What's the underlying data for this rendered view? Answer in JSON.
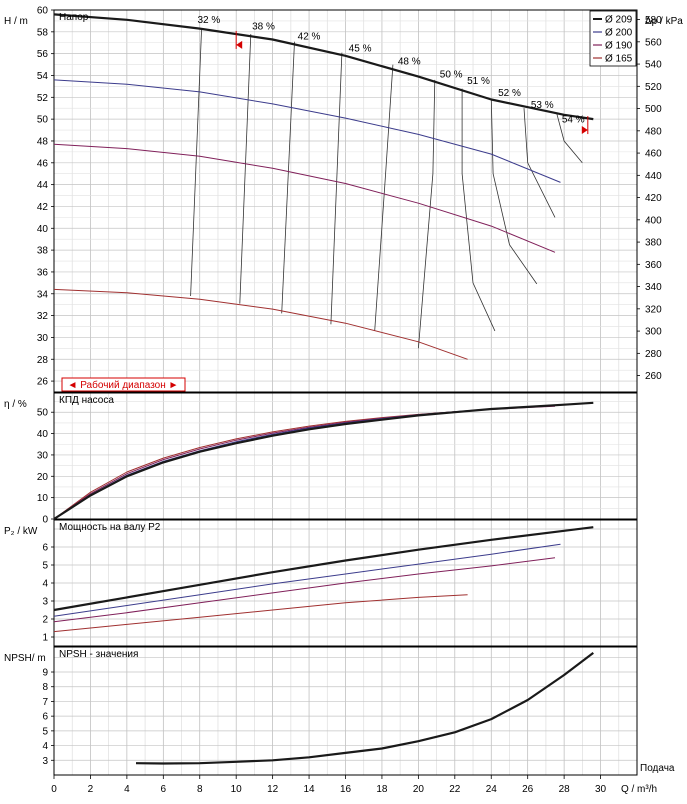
{
  "chart_data": {
    "type": "line",
    "x_axis": {
      "label": "Q / m³/h",
      "ticks": [
        0,
        2,
        4,
        6,
        8,
        10,
        12,
        14,
        16,
        18,
        20,
        22,
        24,
        26,
        28,
        30
      ],
      "xlim": [
        0,
        32
      ],
      "caption": "Подача"
    },
    "legend": [
      {
        "name": "Ø 209",
        "color": "#1a1a1a"
      },
      {
        "name": "Ø 200",
        "color": "#3c3c8c"
      },
      {
        "name": "Ø 190",
        "color": "#80205a"
      },
      {
        "name": "Ø 165",
        "color": "#a03030"
      }
    ],
    "legend_placement": "top-right",
    "grid": true,
    "head": {
      "title": "Напор",
      "ylabel": "H / m",
      "ylim": [
        25,
        60
      ],
      "yticks": [
        26,
        28,
        30,
        32,
        34,
        36,
        38,
        40,
        42,
        44,
        46,
        48,
        50,
        52,
        54,
        56,
        58,
        60
      ],
      "right_label": "Δp / kPa",
      "right_ticks": [
        260,
        280,
        300,
        320,
        340,
        360,
        380,
        400,
        420,
        440,
        460,
        480,
        500,
        520,
        540,
        560,
        580
      ],
      "range_label": "◄ Рабочий диапазон ►",
      "series": [
        {
          "name": "Ø 209",
          "x": [
            0,
            4,
            8,
            12,
            16,
            20,
            24,
            28,
            29.6
          ],
          "y": [
            59.6,
            59.1,
            58.3,
            57.3,
            55.8,
            53.9,
            51.8,
            50.4,
            50.0
          ]
        },
        {
          "name": "Ø 200",
          "x": [
            0,
            4,
            8,
            12,
            16,
            20,
            24,
            27.8
          ],
          "y": [
            53.6,
            53.2,
            52.5,
            51.4,
            50.1,
            48.6,
            46.8,
            44.2
          ]
        },
        {
          "name": "Ø 190",
          "x": [
            0,
            4,
            8,
            12,
            16,
            20,
            24,
            27.5
          ],
          "y": [
            47.7,
            47.3,
            46.6,
            45.5,
            44.1,
            42.3,
            40.2,
            37.8
          ]
        },
        {
          "name": "Ø 165",
          "x": [
            0,
            4,
            8,
            12,
            16,
            20,
            22.7
          ],
          "y": [
            34.4,
            34.1,
            33.5,
            32.6,
            31.3,
            29.6,
            28.0
          ]
        }
      ],
      "efficiency_labels": [
        {
          "label": "32 %",
          "x": 8.5,
          "y": 58.8
        },
        {
          "label": "38 %",
          "x": 11.5,
          "y": 58.2
        },
        {
          "label": "42 %",
          "x": 14.0,
          "y": 57.3
        },
        {
          "label": "45 %",
          "x": 16.8,
          "y": 56.2
        },
        {
          "label": "48 %",
          "x": 19.5,
          "y": 55.0
        },
        {
          "label": "50 %",
          "x": 21.8,
          "y": 53.8
        },
        {
          "label": "51 %",
          "x": 23.3,
          "y": 53.2
        },
        {
          "label": "52 %",
          "x": 25.0,
          "y": 52.1
        },
        {
          "label": "53 %",
          "x": 26.8,
          "y": 51.0
        },
        {
          "label": "54 %",
          "x": 28.5,
          "y": 49.7
        }
      ],
      "efficiency_contours": [
        {
          "x": [
            8.1,
            7.5
          ],
          "y": [
            58.3,
            33.8
          ]
        },
        {
          "x": [
            10.8,
            10.2
          ],
          "y": [
            57.8,
            33.1
          ]
        },
        {
          "x": [
            13.2,
            12.5
          ],
          "y": [
            57.1,
            32.2
          ]
        },
        {
          "x": [
            15.8,
            15.2
          ],
          "y": [
            56.1,
            31.2
          ]
        },
        {
          "x": [
            18.6,
            18.2,
            17.6
          ],
          "y": [
            55.0,
            45.0,
            30.6
          ]
        },
        {
          "x": [
            20.9,
            20.8,
            20.0
          ],
          "y": [
            53.6,
            45.0,
            29.0
          ]
        },
        {
          "x": [
            22.4,
            22.4,
            23.0,
            24.2
          ],
          "y": [
            52.8,
            45.0,
            35.0,
            30.6
          ]
        },
        {
          "x": [
            24.0,
            24.1,
            25.0,
            26.5
          ],
          "y": [
            51.8,
            45.0,
            38.5,
            34.9
          ]
        },
        {
          "x": [
            25.8,
            26.0,
            27.5
          ],
          "y": [
            51.0,
            46.0,
            41.0
          ]
        },
        {
          "x": [
            27.6,
            28.0,
            29.0
          ],
          "y": [
            50.5,
            48.0,
            46.0
          ]
        }
      ],
      "range_markers": [
        {
          "x": 10.0,
          "y": 56.8,
          "dir": "left"
        },
        {
          "x": 29.3,
          "y": 49.0,
          "dir": "right"
        }
      ]
    },
    "efficiency": {
      "title": "КПД насоса",
      "ylabel": "η / %",
      "ylim": [
        0,
        59
      ],
      "yticks": [
        0,
        10,
        20,
        30,
        40,
        50
      ],
      "series": [
        {
          "name": "Ø 209",
          "x": [
            0,
            2,
            4,
            6,
            8,
            10,
            12,
            14,
            16,
            18,
            20,
            22,
            24,
            26,
            28,
            29.6
          ],
          "y": [
            0,
            11,
            20,
            26.5,
            31.5,
            35.5,
            39,
            42,
            44.5,
            46.5,
            48.5,
            50,
            51.5,
            52.5,
            53.5,
            54.4
          ]
        },
        {
          "name": "Ø 200",
          "x": [
            0,
            2,
            4,
            6,
            8,
            10,
            12,
            14,
            16,
            18,
            20,
            22,
            24,
            26,
            27.8
          ],
          "y": [
            0,
            11.3,
            20.5,
            27,
            32,
            36.2,
            39.6,
            42.6,
            45,
            47,
            48.8,
            50.2,
            51.6,
            52.6,
            53.4
          ]
        },
        {
          "name": "Ø 190",
          "x": [
            0,
            2,
            4,
            6,
            8,
            10,
            12,
            14,
            16,
            18,
            20,
            22,
            24,
            26,
            27.5
          ],
          "y": [
            0,
            11.8,
            21.2,
            27.8,
            32.8,
            36.9,
            40.2,
            43,
            45.3,
            47.2,
            48.9,
            50.2,
            51.3,
            52.2,
            52.8
          ]
        },
        {
          "name": "Ø 165",
          "x": [
            0,
            2,
            4,
            6,
            8,
            10,
            12,
            14,
            16,
            18,
            20,
            22,
            22.7
          ],
          "y": [
            0,
            12.5,
            22,
            28.5,
            33.5,
            37.5,
            40.8,
            43.5,
            45.7,
            47.5,
            49,
            50.2,
            50.5
          ]
        }
      ]
    },
    "power": {
      "title": "Мощность на валу P2",
      "ylabel": "P₂ / kW",
      "ylim": [
        0.5,
        7.5
      ],
      "yticks": [
        1,
        2,
        3,
        4,
        5,
        6
      ],
      "series": [
        {
          "name": "Ø 209",
          "x": [
            0,
            4,
            8,
            12,
            16,
            20,
            24,
            28,
            29.6
          ],
          "y": [
            2.5,
            3.2,
            3.9,
            4.6,
            5.25,
            5.85,
            6.4,
            6.9,
            7.1
          ]
        },
        {
          "name": "Ø 200",
          "x": [
            0,
            4,
            8,
            12,
            16,
            20,
            24,
            27.8
          ],
          "y": [
            2.15,
            2.75,
            3.35,
            3.95,
            4.5,
            5.05,
            5.6,
            6.15
          ]
        },
        {
          "name": "Ø 190",
          "x": [
            0,
            4,
            8,
            12,
            16,
            20,
            24,
            27.5
          ],
          "y": [
            1.85,
            2.35,
            2.9,
            3.45,
            4.0,
            4.5,
            4.95,
            5.4
          ]
        },
        {
          "name": "Ø 165",
          "x": [
            0,
            4,
            8,
            12,
            16,
            20,
            22.7
          ],
          "y": [
            1.3,
            1.7,
            2.1,
            2.5,
            2.9,
            3.2,
            3.35
          ]
        }
      ]
    },
    "npsh": {
      "title": "NPSH - значения",
      "ylabel": "NPSH/ m",
      "ylim": [
        2,
        10.7
      ],
      "yticks": [
        3,
        4,
        5,
        6,
        7,
        8,
        9
      ],
      "series": [
        {
          "name": "Ø 209",
          "x": [
            4.5,
            6,
            8,
            10,
            12,
            14,
            16,
            18,
            20,
            22,
            24,
            26,
            28,
            29.6
          ],
          "y": [
            2.8,
            2.78,
            2.8,
            2.9,
            3.0,
            3.2,
            3.5,
            3.8,
            4.3,
            4.9,
            5.8,
            7.1,
            8.8,
            10.3
          ]
        }
      ]
    }
  }
}
